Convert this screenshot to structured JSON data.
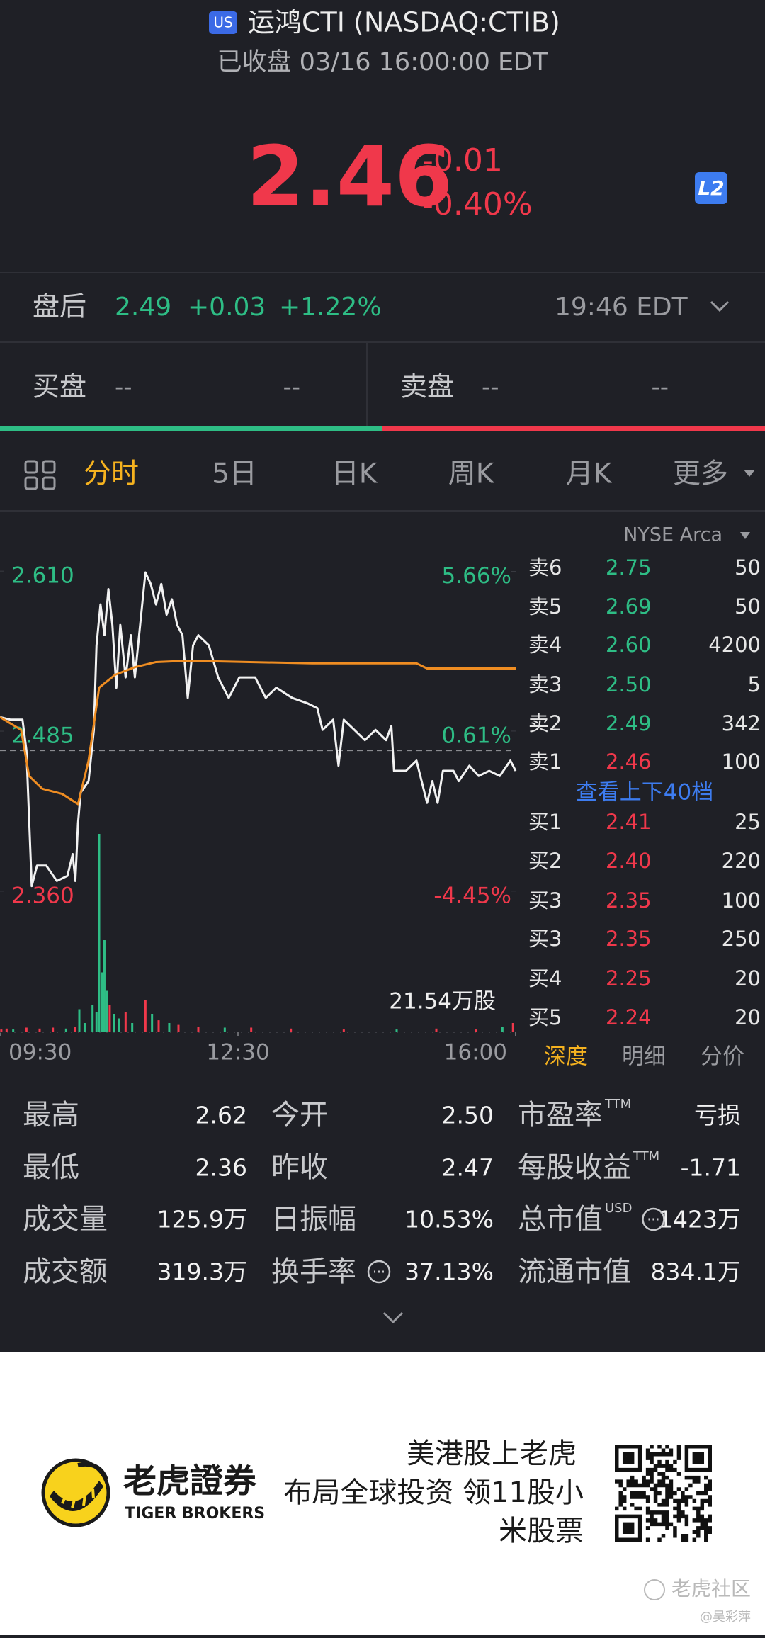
{
  "header": {
    "market_badge": "US",
    "title": "运鸿CTI (NASDAQ:CTIB)",
    "status": "已收盘 03/16 16:00:00 EDT"
  },
  "quote": {
    "price": "2.46",
    "change": "-0.01",
    "change_pct": "-0.40%",
    "level_badge": "L2"
  },
  "after_hours": {
    "label": "盘后",
    "price": "2.49",
    "change": "+0.03",
    "change_pct": "+1.22%",
    "time": "19:46 EDT"
  },
  "bid_ask": {
    "bid_label": "买盘",
    "bid_price": "--",
    "bid_size": "--",
    "ask_label": "卖盘",
    "ask_price": "--",
    "ask_size": "--"
  },
  "tabs": [
    "分时",
    "5日",
    "日K",
    "周K",
    "月K",
    "更多"
  ],
  "chart_data": {
    "type": "line",
    "xlim": [
      0,
      390
    ],
    "xticks": [
      {
        "value": 0,
        "label": "09:30"
      },
      {
        "value": 180,
        "label": "12:30"
      },
      {
        "value": 390,
        "label": "16:00"
      }
    ],
    "ylim": [
      2.345,
      2.635
    ],
    "yticks": [
      {
        "value": 2.61,
        "label": "2.610"
      },
      {
        "value": 2.485,
        "label": "2.485"
      },
      {
        "value": 2.36,
        "label": "2.360"
      }
    ],
    "y2lim": [
      -5.06,
      6.68
    ],
    "y2ticks": [
      {
        "value": 5.66,
        "label": "5.66%"
      },
      {
        "value": 0.61,
        "label": "0.61%"
      },
      {
        "value": -4.45,
        "label": "-4.45%"
      }
    ],
    "baseline": 2.47,
    "series": [
      {
        "color": "#f2f2f2",
        "x": [
          0,
          8,
          17,
          20,
          24,
          28,
          35,
          43,
          51,
          55,
          57,
          59,
          61,
          67,
          71,
          73,
          76,
          79,
          82,
          85,
          88,
          91,
          95,
          99,
          102,
          106,
          110,
          114,
          118,
          122,
          126,
          130,
          134,
          138,
          142,
          146,
          150,
          158,
          165,
          173,
          181,
          193,
          201,
          209,
          221,
          232,
          240,
          244,
          252,
          256,
          260,
          268,
          276,
          284,
          292,
          296,
          298,
          307,
          315,
          323,
          327,
          331,
          335,
          343,
          347,
          355,
          362,
          370,
          378,
          386,
          390
        ],
        "values": [
          2.496,
          2.494,
          2.494,
          2.47,
          2.364,
          2.38,
          2.38,
          2.368,
          2.372,
          2.389,
          2.368,
          2.413,
          2.437,
          2.446,
          2.486,
          2.552,
          2.584,
          2.56,
          2.596,
          2.568,
          2.519,
          2.568,
          2.527,
          2.56,
          2.527,
          2.568,
          2.609,
          2.6,
          2.584,
          2.6,
          2.576,
          2.588,
          2.568,
          2.56,
          2.511,
          2.552,
          2.56,
          2.552,
          2.527,
          2.511,
          2.527,
          2.527,
          2.511,
          2.519,
          2.511,
          2.507,
          2.503,
          2.486,
          2.494,
          2.458,
          2.494,
          2.486,
          2.478,
          2.486,
          2.478,
          2.489,
          2.454,
          2.454,
          2.462,
          2.429,
          2.446,
          2.429,
          2.454,
          2.454,
          2.446,
          2.458,
          2.45,
          2.454,
          2.45,
          2.462,
          2.454
        ]
      },
      {
        "color": "#ef8d22",
        "x": [
          0,
          16,
          22,
          32,
          47,
          59,
          67,
          75,
          87,
          102,
          118,
          142,
          236,
          315,
          323,
          390
        ],
        "values": [
          2.496,
          2.486,
          2.45,
          2.44,
          2.436,
          2.428,
          2.462,
          2.519,
          2.529,
          2.535,
          2.539,
          2.54,
          2.538,
          2.538,
          2.534,
          2.534
        ]
      }
    ],
    "volume": {
      "label": "21.54万股",
      "ylim": [
        0,
        21.54
      ],
      "x": [
        1,
        5,
        10,
        20,
        30,
        40,
        50,
        57,
        60,
        64,
        70,
        73,
        75,
        77,
        79,
        81,
        83,
        86,
        90,
        95,
        100,
        110,
        115,
        120,
        128,
        135,
        150,
        170,
        190,
        220,
        260,
        300,
        330,
        360,
        380,
        388
      ],
      "values": [
        0.3,
        0.4,
        0.3,
        0.5,
        0.4,
        0.5,
        0.4,
        0.6,
        2.5,
        1.0,
        3.0,
        2.2,
        21.54,
        6.5,
        10.0,
        4.5,
        3.0,
        2.0,
        1.5,
        2.2,
        1.0,
        3.5,
        2.0,
        1.3,
        1.0,
        0.8,
        0.6,
        0.5,
        0.5,
        0.4,
        0.3,
        0.3,
        0.4,
        0.3,
        0.6,
        1.0
      ],
      "colors": [
        "#f0384b",
        "#f0384b",
        "#2ebd85",
        "#f0384b",
        "#f0384b",
        "#f0384b",
        "#2ebd85",
        "#f0384b",
        "#2ebd85",
        "#2ebd85",
        "#2ebd85",
        "#2ebd85",
        "#2ebd85",
        "#2ebd85",
        "#2ebd85",
        "#2ebd85",
        "#f0384b",
        "#2ebd85",
        "#2ebd85",
        "#f0384b",
        "#2ebd85",
        "#f0384b",
        "#2ebd85",
        "#f0384b",
        "#2ebd85",
        "#f0384b",
        "#f0384b",
        "#2ebd85",
        "#f0384b",
        "#f0384b",
        "#f0384b",
        "#2ebd85",
        "#f0384b",
        "#f0384b",
        "#2ebd85",
        "#f0384b"
      ]
    }
  },
  "order_book": {
    "exchange": "NYSE Arca",
    "asks": [
      {
        "label": "卖6",
        "price": "2.75",
        "size": "50",
        "color": "#2ebd85"
      },
      {
        "label": "卖5",
        "price": "2.69",
        "size": "50",
        "color": "#2ebd85"
      },
      {
        "label": "卖4",
        "price": "2.60",
        "size": "4200",
        "color": "#2ebd85"
      },
      {
        "label": "卖3",
        "price": "2.50",
        "size": "5",
        "color": "#2ebd85"
      },
      {
        "label": "卖2",
        "price": "2.49",
        "size": "342",
        "color": "#2ebd85"
      },
      {
        "label": "卖1",
        "price": "2.46",
        "size": "100",
        "color": "#f0384b"
      }
    ],
    "more_link": "查看上下40档",
    "bids": [
      {
        "label": "买1",
        "price": "2.41",
        "size": "25",
        "color": "#f0384b"
      },
      {
        "label": "买2",
        "price": "2.40",
        "size": "220",
        "color": "#f0384b"
      },
      {
        "label": "买3",
        "price": "2.35",
        "size": "100",
        "color": "#f0384b"
      },
      {
        "label": "买3",
        "price": "2.35",
        "size": "250",
        "color": "#f0384b"
      },
      {
        "label": "买4",
        "price": "2.25",
        "size": "20",
        "color": "#f0384b"
      },
      {
        "label": "买5",
        "price": "2.24",
        "size": "20",
        "color": "#f0384b"
      }
    ],
    "tabs": [
      "深度",
      "明细",
      "分价"
    ]
  },
  "stats": [
    [
      {
        "label": "最高",
        "value": "2.62"
      },
      {
        "label": "今开",
        "value": "2.50"
      },
      {
        "label": "市盈率",
        "sup": "TTM",
        "value": "亏损"
      }
    ],
    [
      {
        "label": "最低",
        "value": "2.36"
      },
      {
        "label": "昨收",
        "value": "2.47"
      },
      {
        "label": "每股收益",
        "sup": "TTM",
        "value": "-1.71"
      }
    ],
    [
      {
        "label": "成交量",
        "value": "125.9万"
      },
      {
        "label": "日振幅",
        "value": "10.53%"
      },
      {
        "label": "总市值",
        "sup": "USD",
        "value": "1423万"
      }
    ],
    [
      {
        "label": "成交额",
        "value": "319.3万"
      },
      {
        "label": "换手率",
        "value": "37.13%"
      },
      {
        "label": "流通市值",
        "value": "834.1万"
      }
    ]
  ],
  "footer": {
    "brand": "老虎證券",
    "brand_en": "TIGER BROKERS",
    "slogan": [
      "美港股上老虎",
      "布局全球投资 领11股小",
      "米股票"
    ],
    "watermark": "老虎社区",
    "author": "@吴彩萍"
  }
}
